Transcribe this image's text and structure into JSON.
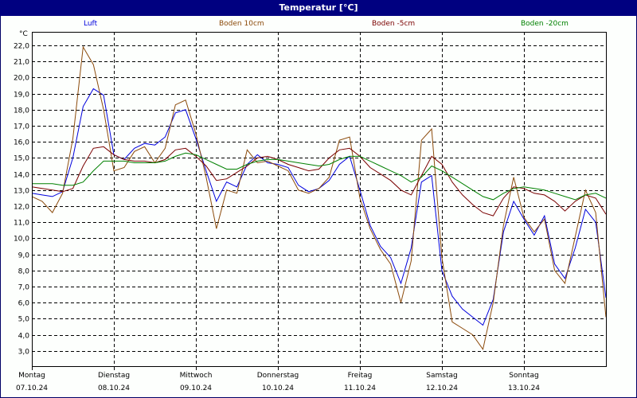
{
  "window": {
    "title": "Temperatur [°C]"
  },
  "legend": [
    {
      "label": "Luft",
      "color": "#0000dd"
    },
    {
      "label": "Boden 10cm",
      "color": "#8b4a0a"
    },
    {
      "label": "Boden -5cm",
      "color": "#7a0000"
    },
    {
      "label": "Boden -20cm",
      "color": "#008000"
    }
  ],
  "axis": {
    "unit": "°C"
  },
  "chart_data": {
    "type": "line",
    "title": "Temperatur [°C]",
    "xlabel": "",
    "ylabel": "°C",
    "ylim": [
      2.0,
      22.8
    ],
    "yticks": [
      "22,0",
      "21,0",
      "20,0",
      "19,0",
      "18,0",
      "17,0",
      "16,0",
      "15,0",
      "14,0",
      "13,0",
      "12,0",
      "11,0",
      "10,0",
      "9,0",
      "8,0",
      "7,0",
      "6,0",
      "5,0",
      "4,0",
      "3,0"
    ],
    "xticks": [
      {
        "day": "Montag",
        "date": "07.10.24"
      },
      {
        "day": "Dienstag",
        "date": "08.10.24"
      },
      {
        "day": "Mittwoch",
        "date": "09.10.24"
      },
      {
        "day": "Donnerstag",
        "date": "10.10.24"
      },
      {
        "day": "Freitag",
        "date": "11.10.24"
      },
      {
        "day": "Samstag",
        "date": "12.10.24"
      },
      {
        "day": "Sonntag",
        "date": "13.10.24"
      }
    ],
    "grid": true,
    "legend_position": "top",
    "x_unit": "hours since 07.10.24 00:00",
    "x": [
      0,
      3,
      6,
      9,
      12,
      15,
      18,
      21,
      24,
      27,
      30,
      33,
      36,
      39,
      42,
      45,
      48,
      51,
      54,
      57,
      60,
      63,
      66,
      69,
      72,
      75,
      78,
      81,
      84,
      87,
      90,
      93,
      96,
      99,
      102,
      105,
      108,
      111,
      114,
      117,
      120,
      123,
      126,
      129,
      132,
      135,
      138,
      141,
      144,
      147,
      150,
      153,
      156,
      159,
      162,
      165,
      168
    ],
    "series": [
      {
        "name": "Luft",
        "color": "#0000dd",
        "values": [
          12.8,
          12.7,
          12.6,
          12.9,
          15.0,
          18.2,
          19.3,
          18.9,
          15.2,
          14.9,
          15.6,
          15.9,
          15.8,
          16.3,
          17.8,
          18.0,
          16.2,
          14.2,
          12.3,
          13.5,
          13.2,
          14.6,
          15.2,
          14.7,
          14.6,
          14.4,
          13.3,
          12.9,
          13.1,
          13.6,
          14.6,
          15.1,
          13.0,
          10.8,
          9.5,
          8.8,
          7.2,
          9.4,
          13.5,
          13.9,
          8.0,
          6.4,
          5.6,
          5.1,
          4.6,
          6.2,
          10.4,
          12.3,
          11.2,
          10.2,
          11.4,
          8.4,
          7.5,
          9.4,
          11.8,
          11.0,
          6.3
        ]
      },
      {
        "name": "Boden 10cm",
        "color": "#8b4a0a",
        "values": [
          12.6,
          12.3,
          11.6,
          12.8,
          16.2,
          21.9,
          20.8,
          18.0,
          14.2,
          14.4,
          15.4,
          15.7,
          14.7,
          15.6,
          18.3,
          18.6,
          16.5,
          13.8,
          10.6,
          13.0,
          12.8,
          15.5,
          14.7,
          14.8,
          14.5,
          14.2,
          13.0,
          12.8,
          13.1,
          13.8,
          16.1,
          16.3,
          12.5,
          10.6,
          9.3,
          8.4,
          6.0,
          8.6,
          16.1,
          16.8,
          8.8,
          4.8,
          4.4,
          4.0,
          3.1,
          6.0,
          10.8,
          13.8,
          11.3,
          10.4,
          11.2,
          8.0,
          7.2,
          10.1,
          13.0,
          11.6,
          5.1
        ]
      },
      {
        "name": "Boden -5cm",
        "color": "#7a0000",
        "values": [
          13.2,
          13.1,
          13.0,
          12.9,
          13.1,
          14.5,
          15.6,
          15.7,
          15.2,
          14.9,
          14.8,
          14.8,
          14.7,
          14.9,
          15.5,
          15.6,
          15.1,
          14.5,
          13.6,
          13.7,
          14.1,
          14.5,
          15.0,
          15.1,
          14.9,
          14.6,
          14.4,
          14.2,
          14.3,
          15.0,
          15.5,
          15.6,
          15.1,
          14.4,
          14.0,
          13.6,
          13.0,
          12.7,
          13.9,
          15.1,
          14.6,
          13.5,
          12.7,
          12.1,
          11.6,
          11.4,
          12.5,
          13.2,
          13.1,
          12.8,
          12.7,
          12.3,
          11.7,
          12.3,
          12.7,
          12.5,
          11.5
        ]
      },
      {
        "name": "Boden -20cm",
        "color": "#008000",
        "values": [
          13.4,
          13.4,
          13.4,
          13.3,
          13.3,
          13.5,
          14.2,
          14.8,
          14.8,
          14.8,
          14.7,
          14.7,
          14.7,
          14.8,
          15.1,
          15.3,
          15.2,
          14.9,
          14.6,
          14.3,
          14.3,
          14.6,
          14.8,
          14.9,
          14.9,
          14.8,
          14.7,
          14.6,
          14.5,
          14.6,
          14.9,
          15.1,
          15.1,
          14.8,
          14.5,
          14.2,
          13.9,
          13.5,
          13.8,
          14.5,
          14.2,
          13.8,
          13.4,
          13.0,
          12.6,
          12.4,
          12.8,
          13.1,
          13.2,
          13.1,
          13.0,
          12.8,
          12.6,
          12.4,
          12.7,
          12.8,
          12.5
        ]
      }
    ]
  }
}
